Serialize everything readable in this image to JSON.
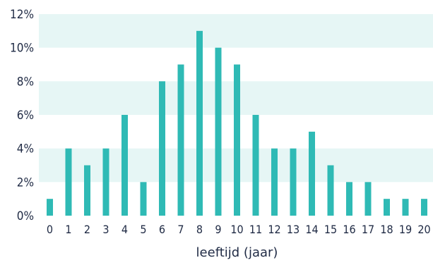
{
  "chart_data": {
    "type": "bar",
    "categories": [
      "0",
      "1",
      "2",
      "3",
      "4",
      "5",
      "6",
      "7",
      "8",
      "9",
      "10",
      "11",
      "12",
      "13",
      "14",
      "15",
      "16",
      "17",
      "18",
      "19",
      "20"
    ],
    "values": [
      1,
      4,
      3,
      4,
      6,
      2,
      8,
      9,
      11,
      10,
      9,
      6,
      4,
      4,
      5,
      3,
      2,
      2,
      1,
      1,
      1
    ],
    "title": "",
    "xlabel": "leeftijd (jaar)",
    "ylabel": "",
    "ylim": [
      0,
      12
    ],
    "y_ticks": [
      "0%",
      "2%",
      "4%",
      "6%",
      "8%",
      "10%",
      "12%"
    ],
    "grid": "alternating horizontal bands",
    "colors": {
      "bar": "#2fbab5",
      "band": "#e6f6f5",
      "text": "#1f2a44"
    }
  }
}
